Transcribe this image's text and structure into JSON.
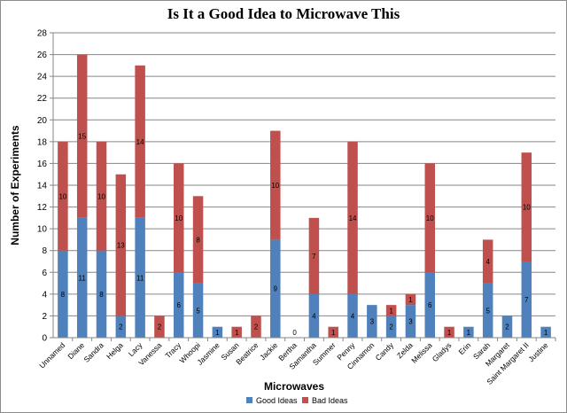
{
  "chart_data": {
    "type": "bar",
    "stacked": true,
    "title": "Is It a Good Idea to Microwave This",
    "xlabel": "Microwaves",
    "ylabel": "Number of Experiments",
    "ylim": [
      0,
      28
    ],
    "yticks": [
      0,
      2,
      4,
      6,
      8,
      10,
      12,
      14,
      16,
      18,
      20,
      22,
      24,
      26,
      28
    ],
    "grid": true,
    "legend_position": "bottom",
    "categories": [
      "Unnamed",
      "Diane",
      "Sandra",
      "Helga",
      "Lacy",
      "Vanessa",
      "Tracy",
      "Whoopi",
      "Jasmine",
      "Susan",
      "Beatrice",
      "Jackie",
      "Bertha",
      "Samantha",
      "Summer",
      "Penny",
      "Cinnamon",
      "Candy",
      "Zelda",
      "Melissa",
      "Gladys",
      "Erin",
      "Sarah",
      "Margaret",
      "Saint Margaret II",
      "Justine"
    ],
    "series": [
      {
        "name": "Good Ideas",
        "color": "#4f81bd",
        "values": [
          8,
          11,
          8,
          2,
          11,
          0,
          6,
          5,
          1,
          0,
          0,
          9,
          0,
          4,
          0,
          4,
          3,
          2,
          3,
          6,
          0,
          1,
          5,
          2,
          7,
          1
        ]
      },
      {
        "name": "Bad Ideas",
        "color": "#c0504d",
        "values": [
          10,
          15,
          10,
          13,
          14,
          2,
          10,
          8,
          0,
          1,
          2,
          10,
          0,
          7,
          1,
          14,
          0,
          1,
          1,
          10,
          1,
          0,
          4,
          0,
          10,
          0
        ]
      }
    ],
    "good_labels": [
      "8",
      "11",
      "8",
      "2",
      "11",
      "",
      "6",
      "5",
      "1",
      "",
      "",
      "9",
      "0",
      "4",
      "",
      "4",
      "3",
      "2",
      "3",
      "6",
      "",
      "1",
      "5",
      "2",
      "7",
      "1"
    ],
    "bad_labels": [
      "10",
      "15",
      "10",
      "13",
      "14",
      "2",
      "10",
      "8",
      "",
      "1",
      "2",
      "10",
      "",
      "7",
      "1",
      "14",
      "",
      "1",
      "1",
      "10",
      "1",
      "",
      "4",
      "",
      "10",
      ""
    ]
  }
}
